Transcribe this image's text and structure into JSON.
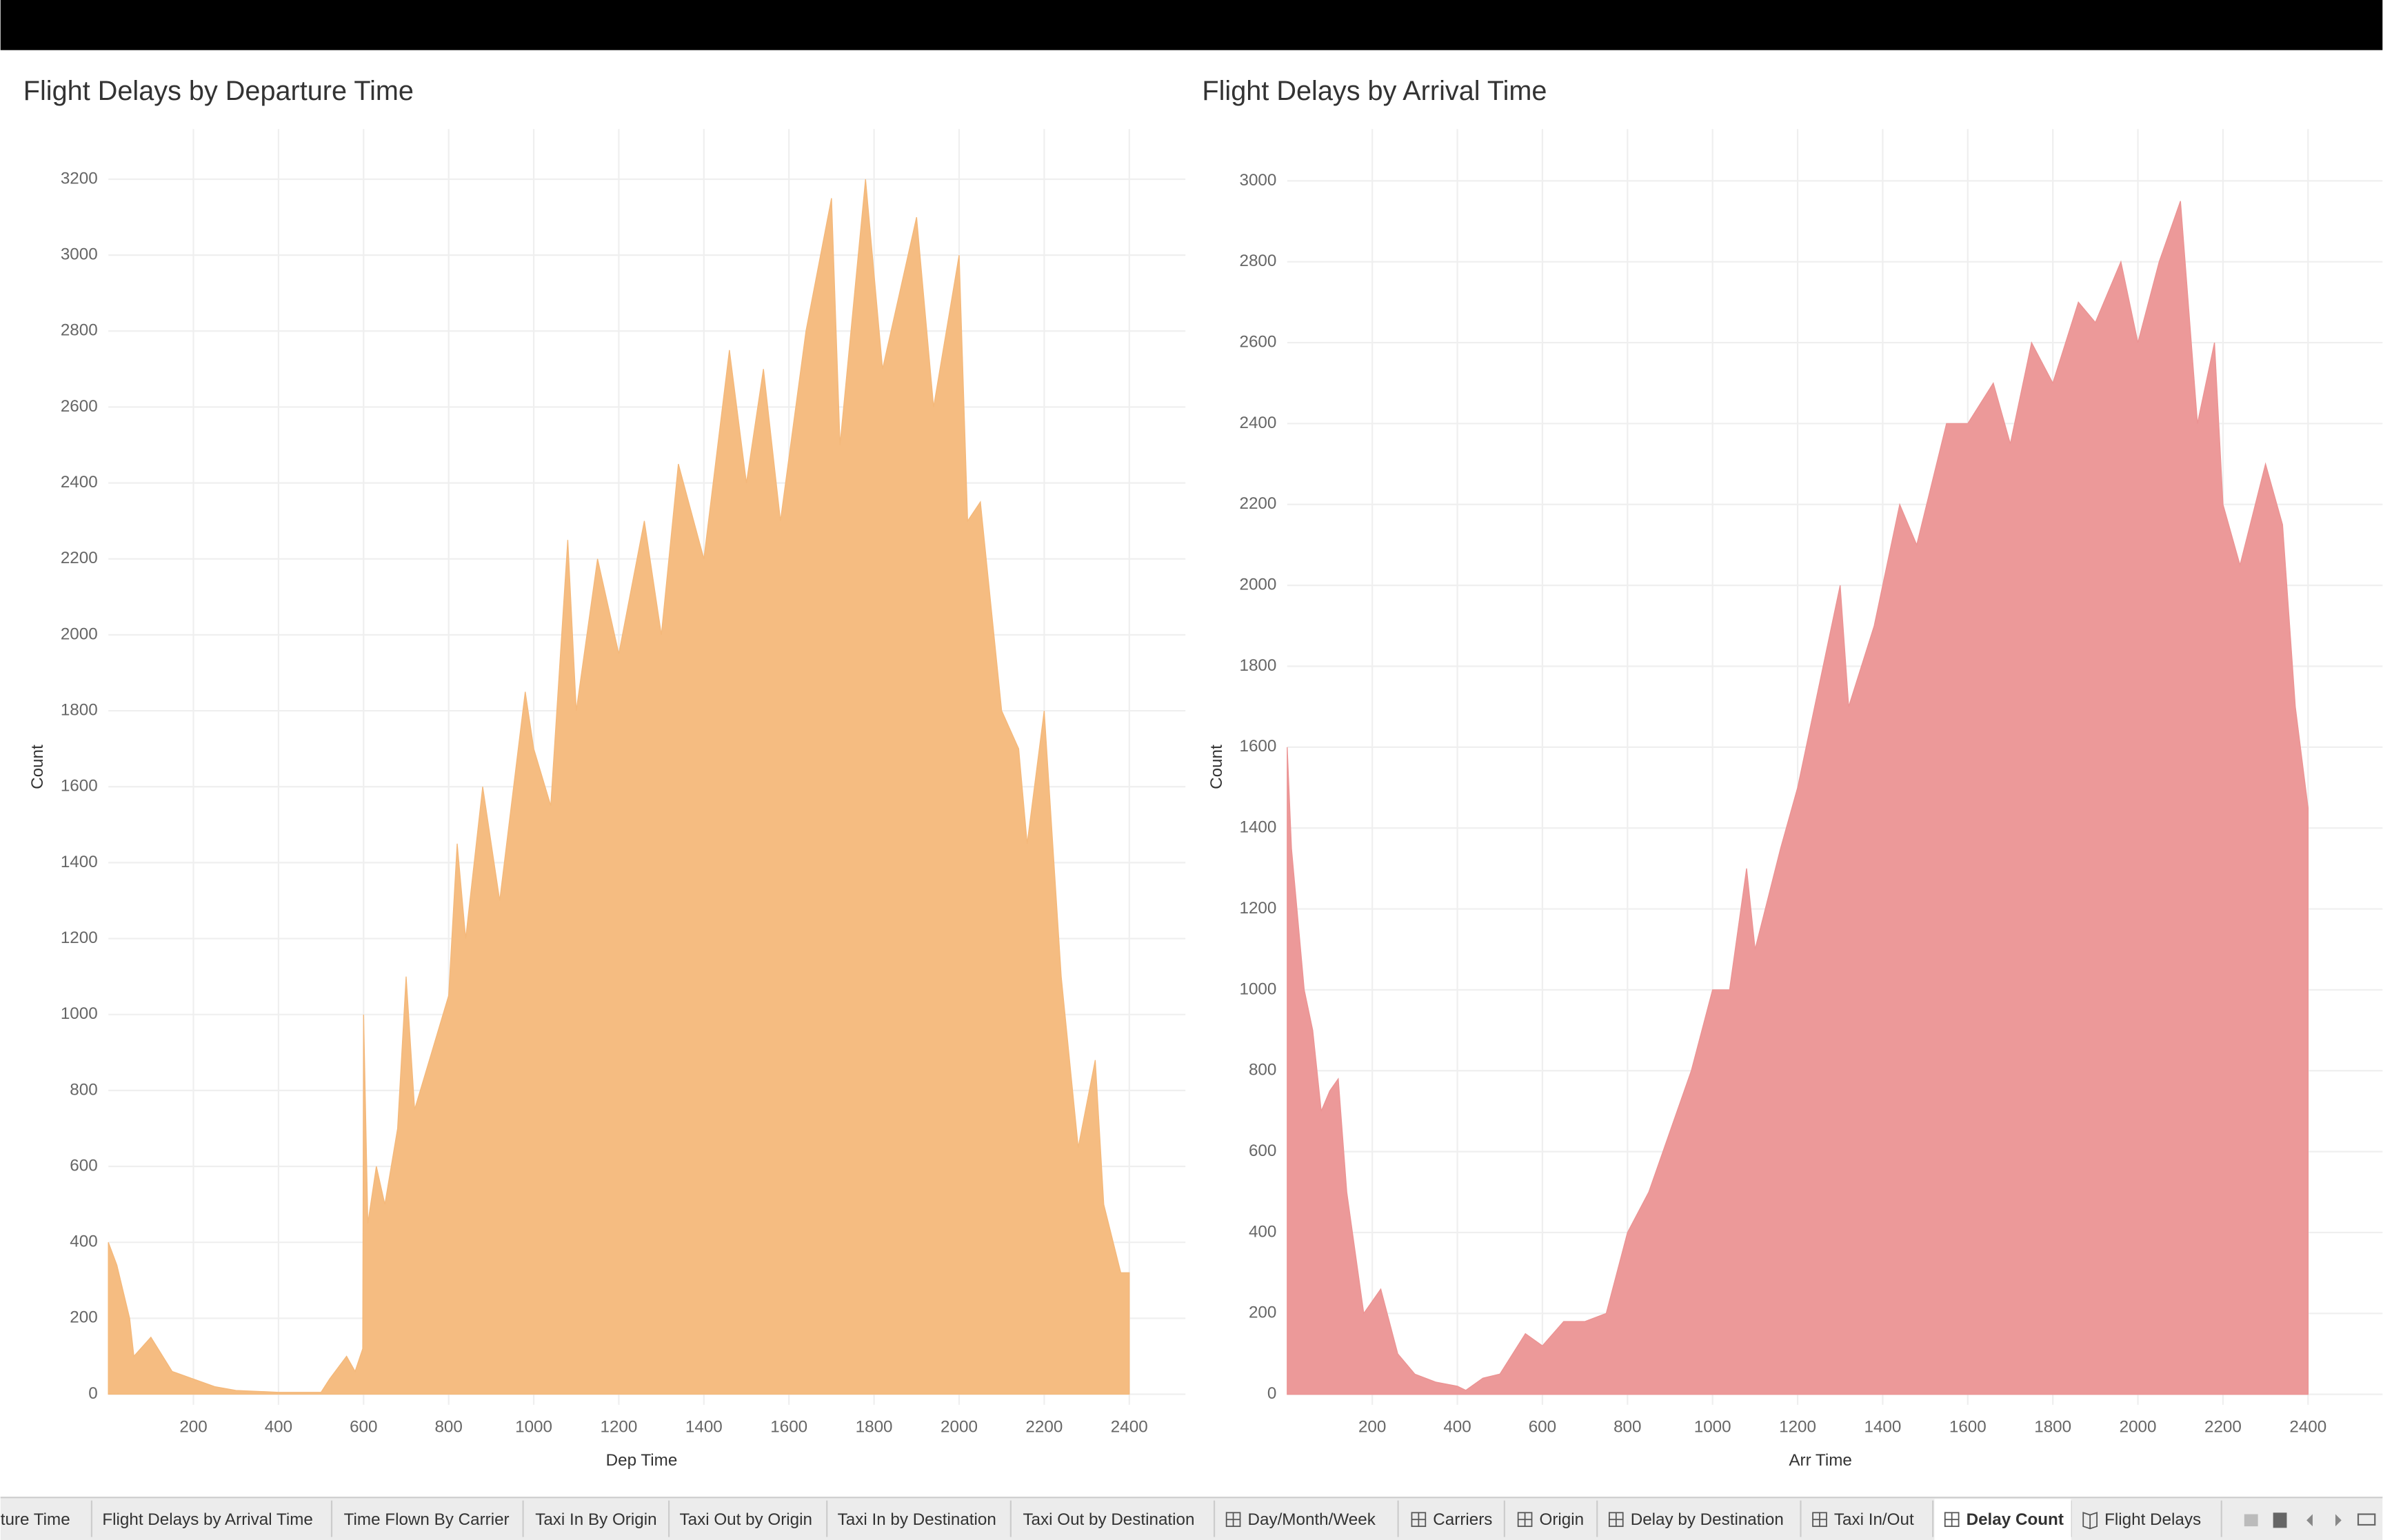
{
  "chart_data": [
    {
      "type": "area",
      "title": "Flight Delays by Departure Time",
      "x_label": "Dep Time",
      "y_label": "Count",
      "color": "#f4b87a",
      "x": [
        0,
        20,
        50,
        60,
        100,
        150,
        200,
        250,
        300,
        400,
        500,
        520,
        560,
        580,
        598,
        600,
        610,
        630,
        650,
        680,
        700,
        720,
        760,
        800,
        820,
        840,
        880,
        920,
        980,
        1000,
        1040,
        1080,
        1100,
        1150,
        1200,
        1260,
        1300,
        1340,
        1400,
        1460,
        1500,
        1540,
        1580,
        1640,
        1700,
        1720,
        1780,
        1820,
        1900,
        1940,
        2000,
        2020,
        2050,
        2100,
        2140,
        2160,
        2200,
        2240,
        2280,
        2320,
        2340,
        2380,
        2400
      ],
      "values": [
        400,
        340,
        200,
        100,
        150,
        60,
        40,
        20,
        10,
        5,
        5,
        40,
        100,
        60,
        120,
        1000,
        450,
        600,
        500,
        700,
        1100,
        750,
        900,
        1050,
        1450,
        1200,
        1600,
        1300,
        1850,
        1700,
        1550,
        2250,
        1800,
        2200,
        1950,
        2300,
        2000,
        2450,
        2200,
        2750,
        2400,
        2700,
        2300,
        2800,
        3150,
        2500,
        3200,
        2700,
        3100,
        2600,
        3000,
        2300,
        2350,
        1800,
        1700,
        1450,
        1800,
        1100,
        650,
        880,
        500,
        320,
        320
      ],
      "xlim": [
        0,
        2532
      ],
      "ylim": [
        -28,
        3332
      ],
      "xticks": [
        200,
        400,
        600,
        800,
        1000,
        1200,
        1400,
        1600,
        1800,
        2000,
        2200,
        2400
      ],
      "yticks": [
        0,
        200,
        400,
        600,
        800,
        1000,
        1200,
        1400,
        1600,
        1800,
        2000,
        2200,
        2400,
        2600,
        2800,
        3000,
        3200
      ],
      "grid": true
    },
    {
      "type": "area",
      "title": "Flight Delays by Arrival Time",
      "x_label": "Arr Time",
      "y_label": "Count",
      "color": "#eb9393",
      "x": [
        0,
        10,
        40,
        60,
        80,
        100,
        120,
        140,
        180,
        220,
        260,
        300,
        350,
        400,
        420,
        460,
        500,
        560,
        600,
        650,
        700,
        750,
        800,
        850,
        900,
        950,
        1000,
        1040,
        1080,
        1100,
        1160,
        1200,
        1240,
        1300,
        1320,
        1380,
        1440,
        1480,
        1550,
        1600,
        1660,
        1700,
        1750,
        1800,
        1860,
        1900,
        1960,
        2000,
        2050,
        2100,
        2140,
        2180,
        2200,
        2240,
        2300,
        2340,
        2370,
        2400
      ],
      "values": [
        1600,
        1350,
        1000,
        900,
        700,
        750,
        780,
        500,
        200,
        260,
        100,
        50,
        30,
        20,
        10,
        40,
        50,
        150,
        120,
        180,
        180,
        200,
        400,
        500,
        650,
        800,
        1000,
        1000,
        1300,
        1100,
        1350,
        1500,
        1700,
        2000,
        1700,
        1900,
        2200,
        2100,
        2400,
        2400,
        2500,
        2350,
        2600,
        2500,
        2700,
        2650,
        2800,
        2600,
        2800,
        2950,
        2400,
        2600,
        2200,
        2050,
        2300,
        2150,
        1700,
        1450
      ],
      "xlim": [
        0,
        2575
      ],
      "ylim": [
        -26,
        3128
      ],
      "xticks": [
        200,
        400,
        600,
        800,
        1000,
        1200,
        1400,
        1600,
        1800,
        2000,
        2200,
        2400
      ],
      "yticks": [
        0,
        200,
        400,
        600,
        800,
        1000,
        1200,
        1400,
        1600,
        1800,
        2000,
        2200,
        2400,
        2600,
        2800,
        3000
      ],
      "grid": true
    }
  ],
  "tabs": [
    "ture Time",
    "Flight Delays by Arrival Time",
    "Time Flown By Carrier",
    "Taxi In By Origin",
    "Taxi Out by Origin",
    "Taxi In by Destination",
    "Taxi Out by Destination",
    "Day/Month/Week",
    "Carriers",
    "Origin",
    "Delay by Destination",
    "Taxi In/Out",
    "Delay Count",
    "Flight Delays"
  ]
}
